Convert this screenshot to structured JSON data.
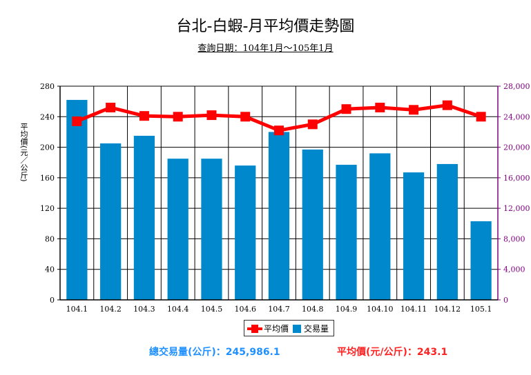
{
  "chart_data": {
    "type": "bar",
    "title": "台北-白蝦-月平均價走勢圖",
    "subtitle": "查詢日期：104年1月～105年1月",
    "categories": [
      "104.1",
      "104.2",
      "104.3",
      "104.4",
      "104.5",
      "104.6",
      "104.7",
      "104.8",
      "104.9",
      "104.10",
      "104.11",
      "104.12",
      "105.1"
    ],
    "ylabel": "平均價(元／公斤)",
    "y_left_ticks": [
      "0",
      "40",
      "80",
      "120",
      "160",
      "200",
      "240",
      "280"
    ],
    "y_left_range": [
      0,
      280
    ],
    "y_right_ticks": [
      "0",
      "4,000",
      "8,000",
      "12,000",
      "16,000",
      "20,000",
      "24,000",
      "28,000"
    ],
    "y_right_range": [
      0,
      28000
    ],
    "grid": true,
    "series": [
      {
        "name": "交易量",
        "kind": "bar",
        "axis": "right",
        "color": "#0088cc",
        "values": [
          26200,
          20500,
          21500,
          18500,
          18500,
          17600,
          22000,
          19700,
          17700,
          19200,
          16700,
          17800,
          10300
        ]
      },
      {
        "name": "平均價",
        "kind": "line",
        "axis": "left",
        "color": "#ff0000",
        "values": [
          234,
          252,
          241,
          240,
          242,
          240,
          222,
          230,
          250,
          252,
          249,
          255,
          240
        ]
      }
    ],
    "legend_position": "bottom"
  },
  "summary": {
    "volume_text": "總交易量(公斤)：245,986.1",
    "avg_text": "平均價(元/公斤)：243.1"
  }
}
